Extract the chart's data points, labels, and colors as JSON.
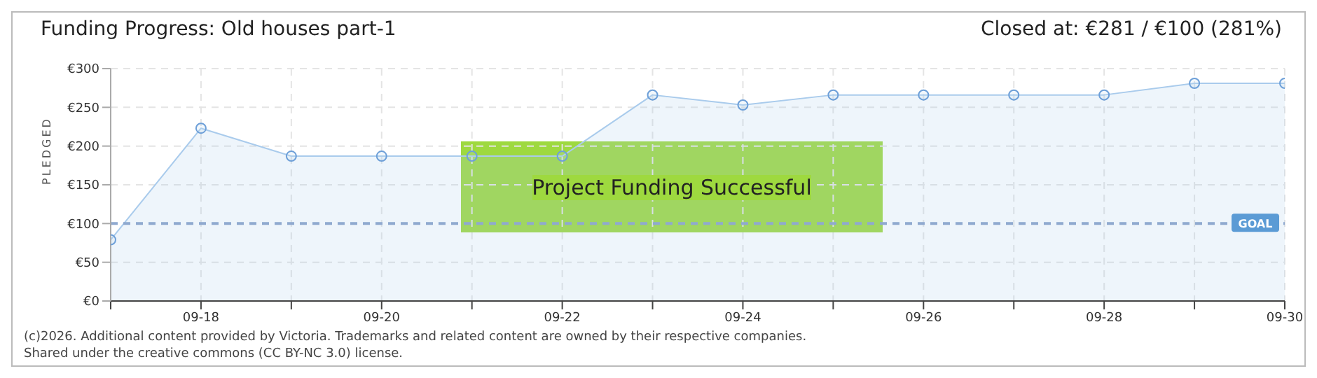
{
  "chart_data": {
    "type": "area",
    "title": "Funding Progress: Old houses part-1",
    "subtitle": "Closed at:  €281 /  €100 (281%)",
    "ylabel": "PLEDGED",
    "categories": [
      null,
      "09-18",
      null,
      "09-20",
      null,
      "09-22",
      null,
      "09-24",
      null,
      "09-26",
      null,
      "09-28",
      null,
      "09-30"
    ],
    "series": [
      {
        "color": "#a9cbec",
        "values": [
          79,
          223,
          187,
          187,
          187,
          187,
          266,
          253,
          266,
          266,
          266,
          266,
          281,
          281
        ]
      }
    ],
    "ylim": [
      0,
      300
    ],
    "yticks": [
      {
        "value": 0,
        "label": "€0"
      },
      {
        "value": 50,
        "label": "€50"
      },
      {
        "value": 100,
        "label": "€100"
      },
      {
        "value": 150,
        "label": "€150"
      },
      {
        "value": 200,
        "label": "€200"
      },
      {
        "value": 250,
        "label": "€250"
      },
      {
        "value": 300,
        "label": "€300"
      }
    ],
    "grid": true,
    "marker": "circle",
    "line_style": "solid",
    "ref_lines": [
      {
        "axis": "y",
        "value": 100,
        "label": "GOAL",
        "color": "#8fa9cf",
        "line_style": "dashed"
      }
    ],
    "annotations": [
      "Project Funding Successful",
      "(c)2026. Additional content provided by Victoria. Trademarks and related content are owned by their respective companies.",
      "Shared under the creative commons (CC BY-NC 3.0) license."
    ]
  }
}
